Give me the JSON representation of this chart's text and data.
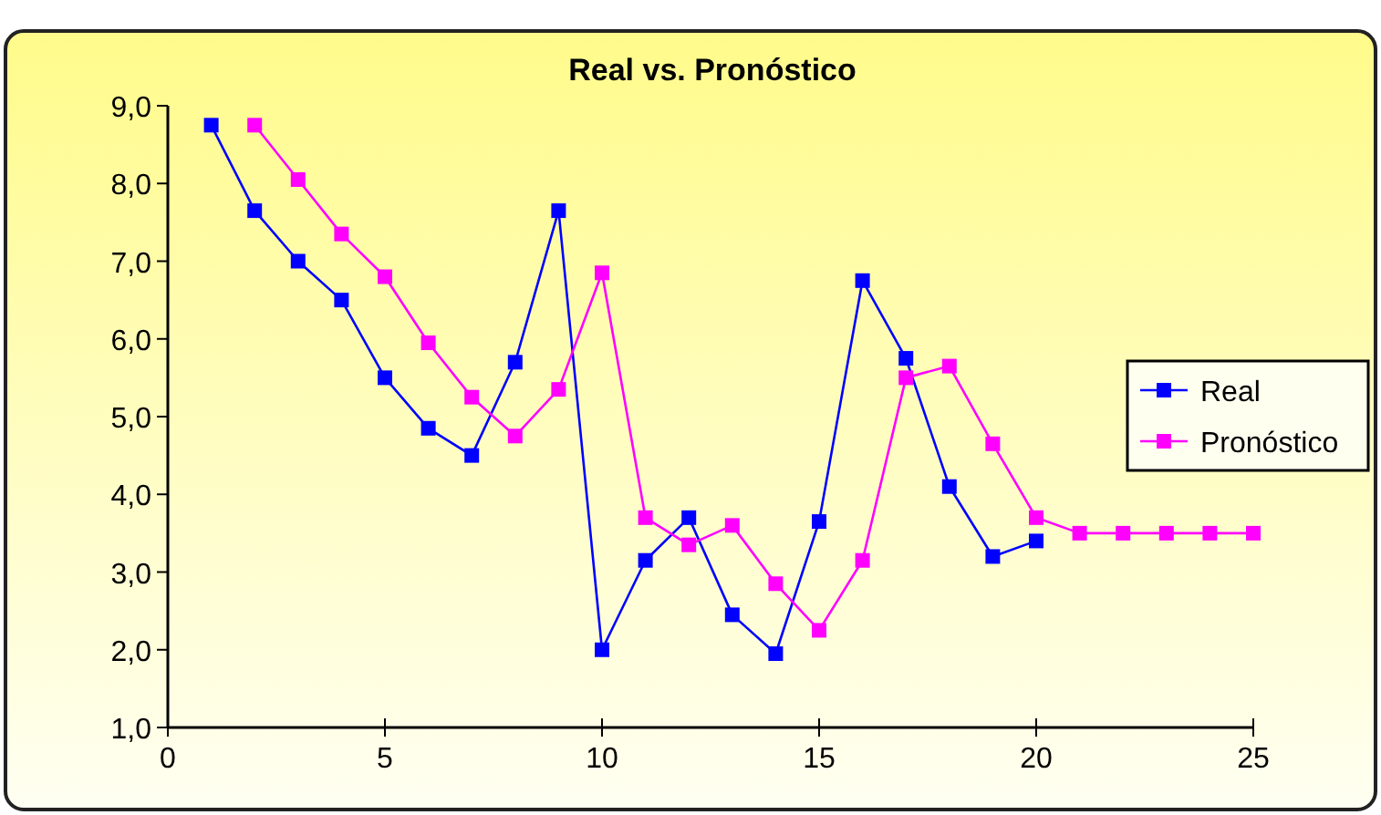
{
  "chart_data": {
    "type": "line",
    "title": "Real vs. Pronóstico",
    "xlim": [
      0,
      25
    ],
    "xticks": [
      0,
      5,
      10,
      15,
      20,
      25
    ],
    "ylim": [
      1,
      9
    ],
    "yticks": [
      {
        "value": 1,
        "label": "1,0"
      },
      {
        "value": 2,
        "label": "2,0"
      },
      {
        "value": 3,
        "label": "3,0"
      },
      {
        "value": 4,
        "label": "4,0"
      },
      {
        "value": 5,
        "label": "5,0"
      },
      {
        "value": 6,
        "label": "6,0"
      },
      {
        "value": 7,
        "label": "7,0"
      },
      {
        "value": 8,
        "label": "8,0"
      },
      {
        "value": 9,
        "label": "9,0"
      }
    ],
    "marker": "square",
    "legend": "right",
    "grid": false,
    "series": [
      {
        "name": "Real",
        "color": "#0000ff",
        "x": [
          1,
          2,
          3,
          4,
          5,
          6,
          7,
          8,
          9,
          10,
          11,
          12,
          13,
          14,
          15,
          16,
          17,
          18,
          19,
          20
        ],
        "values": [
          8.75,
          7.65,
          7.0,
          6.5,
          5.5,
          4.85,
          4.5,
          5.7,
          7.65,
          2.0,
          3.15,
          3.7,
          2.45,
          1.95,
          3.65,
          6.75,
          5.75,
          4.1,
          3.2,
          3.4
        ]
      },
      {
        "name": "Pronóstico",
        "color": "#ff00ff",
        "x": [
          2,
          3,
          4,
          5,
          6,
          7,
          8,
          9,
          10,
          11,
          12,
          13,
          14,
          15,
          16,
          17,
          18,
          19,
          20,
          21,
          22,
          23,
          24,
          25
        ],
        "values": [
          8.75,
          8.05,
          7.35,
          6.8,
          5.95,
          5.25,
          4.75,
          5.35,
          6.85,
          3.7,
          3.35,
          3.6,
          2.85,
          2.25,
          3.15,
          5.5,
          5.65,
          4.65,
          3.7,
          3.5,
          3.5,
          3.5,
          3.5,
          3.5
        ]
      }
    ]
  }
}
